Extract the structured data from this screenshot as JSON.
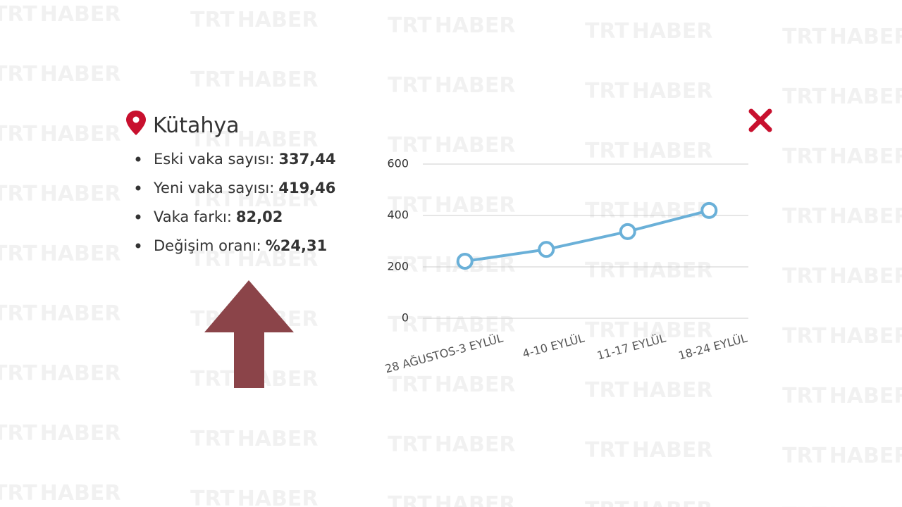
{
  "watermark": {
    "left": "TRT",
    "right": "HABER"
  },
  "panel": {
    "title": "Kütahya",
    "items": [
      {
        "label": "Eski vaka sayısı:",
        "value": "337,44"
      },
      {
        "label": "Yeni vaka sayısı:",
        "value": "419,46"
      },
      {
        "label": "Vaka farkı:",
        "value": "82,02"
      },
      {
        "label": "Değişim oranı:",
        "value": "%24,31"
      }
    ]
  },
  "chart_data": {
    "type": "line",
    "categories": [
      "28 AĞUSTOS-3 EYLÜL",
      "4-10 EYLÜL",
      "11-17 EYLÜL",
      "18-24 EYLÜL"
    ],
    "series": [
      {
        "color": "#6ab0d8",
        "values": [
          222,
          268,
          337.44,
          419.46
        ]
      }
    ],
    "ylim": [
      0,
      600
    ],
    "yticks": [
      0,
      200,
      400,
      600
    ],
    "grid": true
  }
}
